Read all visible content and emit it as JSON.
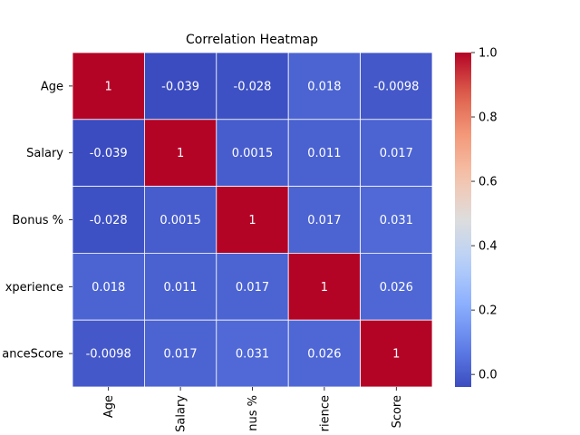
{
  "chart_data": {
    "type": "heatmap",
    "title": "Correlation Heatmap",
    "row_labels": [
      "Age",
      "Salary",
      "Bonus %",
      "Experience",
      "PerformanceScore"
    ],
    "col_labels": [
      "Age",
      "Salary",
      "Bonus %",
      "Experience",
      "PerformanceScore"
    ],
    "visible_row_labels": [
      "Age",
      "Salary",
      "Bonus %",
      "xperience",
      "anceScore"
    ],
    "visible_col_labels": [
      "Age",
      "Salary",
      "nus %",
      "rience",
      "Score"
    ],
    "values": [
      [
        1,
        -0.039,
        -0.028,
        0.018,
        -0.0098
      ],
      [
        -0.039,
        1,
        0.0015,
        0.011,
        0.017
      ],
      [
        -0.028,
        0.0015,
        1,
        0.017,
        0.031
      ],
      [
        0.018,
        0.011,
        0.017,
        1,
        0.026
      ],
      [
        -0.0098,
        0.017,
        0.031,
        0.026,
        1
      ]
    ],
    "annotations": [
      [
        "1",
        "-0.039",
        "-0.028",
        "0.018",
        "-0.0098"
      ],
      [
        "-0.039",
        "1",
        "0.0015",
        "0.011",
        "0.017"
      ],
      [
        "-0.028",
        "0.0015",
        "1",
        "0.017",
        "0.031"
      ],
      [
        "0.018",
        "0.011",
        "0.017",
        "1",
        "0.026"
      ],
      [
        "-0.0098",
        "0.017",
        "0.031",
        "0.026",
        "1"
      ]
    ],
    "colormap": "coolwarm",
    "colorbar": {
      "min": -0.039,
      "max": 1,
      "ticks": [
        0.0,
        0.2,
        0.4,
        0.6,
        0.8,
        1.0
      ],
      "tick_labels": [
        "0.0",
        "0.2",
        "0.4",
        "0.6",
        "0.8",
        "1.0"
      ]
    },
    "grid": false,
    "cell_border_color": "#ffffff"
  }
}
